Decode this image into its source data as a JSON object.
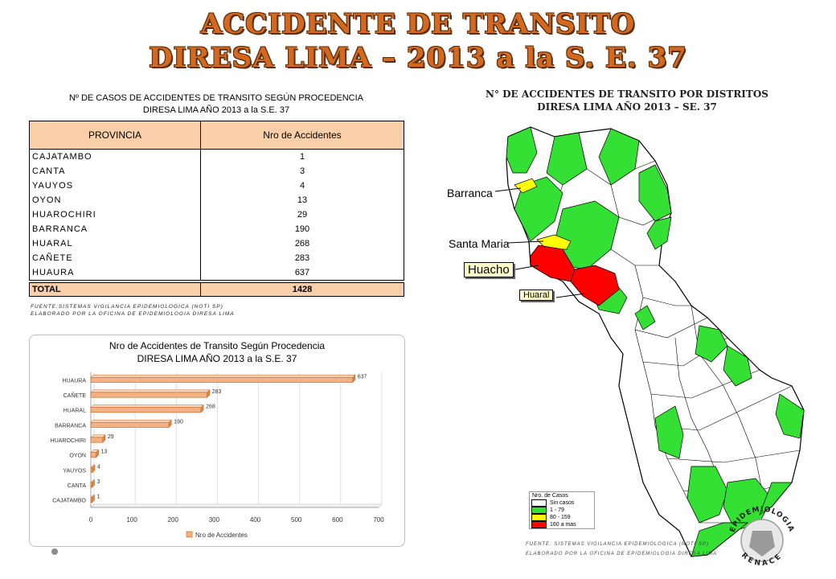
{
  "header": {
    "line1": "ACCIDENTE DE TRANSITO",
    "line2": "DIRESA LIMA – 2013 a la  S. E. 37"
  },
  "table": {
    "caption_line1": "Nº DE CASOS DE ACCIDENTES  DE TRANSITO SEGÚN PROCEDENCIA",
    "caption_line2": "DIRESA LIMA  AÑO 2013 a la S.E. 37",
    "header_col1": "PROVINCIA",
    "header_col2": "Nro de Accidentes",
    "rows": [
      {
        "provincia": "CAJATAMBO",
        "valor": "1"
      },
      {
        "provincia": "CANTA",
        "valor": "3"
      },
      {
        "provincia": "YAUYOS",
        "valor": "4"
      },
      {
        "provincia": "OYON",
        "valor": "13"
      },
      {
        "provincia": "HUAROCHIRI",
        "valor": "29"
      },
      {
        "provincia": "BARRANCA",
        "valor": "190"
      },
      {
        "provincia": "HUARAL",
        "valor": "268"
      },
      {
        "provincia": "CAÑETE",
        "valor": "283"
      },
      {
        "provincia": "HUAURA",
        "valor": "637"
      }
    ],
    "total_label": "TOTAL",
    "total_value": "1428",
    "source_line1": "FUENTE:SISTEMAS VIGILANCIA EPIDEMIOLOGICA (NOTI SP)",
    "source_line2": "ELABORADO POR LA OFICINA DE EPIDEMIOLOGIA  DIRESA LIMA"
  },
  "chart_data": {
    "type": "bar",
    "orientation": "horizontal",
    "title": "Nro de Accidentes de Transito Según Procedencia",
    "subtitle": "DIRESA LIMA AÑO 2013 a la S.E. 37",
    "categories": [
      "HUAURA",
      "CAÑETE",
      "HUARAL",
      "BARRANCA",
      "HUAROCHIRI",
      "OYON",
      "YAUYOS",
      "CANTA",
      "CAJATAMBO"
    ],
    "series": [
      {
        "name": "Nro de Accidentes",
        "values": [
          637,
          283,
          268,
          190,
          29,
          13,
          4,
          3,
          1
        ]
      }
    ],
    "xlim": [
      0,
      700
    ],
    "xticks": [
      0,
      100,
      200,
      300,
      400,
      500,
      600,
      700
    ],
    "grid": true,
    "legend_position": "bottom",
    "bar_color": "#f4b183"
  },
  "map": {
    "title_line1": "N° DE ACCIDENTES DE TRANSITO POR DISTRITOS",
    "title_line2": "DIRESA LIMA AÑO 2013 – SE. 37",
    "labels": {
      "barranca": "Barranca",
      "santa_maria": "Santa Maria",
      "huacho": "Huacho",
      "huaral": "Huaral"
    },
    "legend": {
      "title": "Nro. de Casos",
      "items": [
        {
          "label": "Sin casos",
          "color": "#ffffff"
        },
        {
          "label": "1 - 79",
          "color": "#33e033"
        },
        {
          "label": "80 - 159",
          "color": "#ffff00"
        },
        {
          "label": "160 a mas",
          "color": "#ff0000"
        }
      ]
    },
    "source_line1": "FUENTE:  SISTEMAS VIGILANCIA EPIDEMIOLOGICA (NOTI SP)",
    "source_line2": "ELABORADO POR LA OFICINA DE EPIDEMIOLOGIA DIRESA LIMA",
    "seal_text_top": "EPIDEMIOLOGIA",
    "seal_text_bottom": "RENACE"
  }
}
